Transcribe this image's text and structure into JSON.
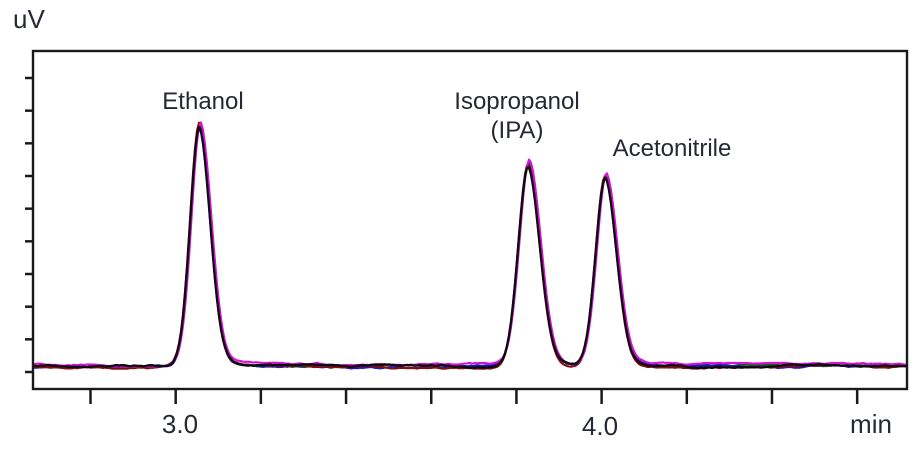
{
  "figure": {
    "kind": "overlaid-chromatograms",
    "background": "#ffffff",
    "text_color": "#262934",
    "frame_color": "#1a1a1a"
  },
  "axis_labels": {
    "y_unit": "uV",
    "x_unit": "min"
  },
  "x_tick_labels": {
    "t3": "3.0",
    "t4": "4.0"
  },
  "peak_labels": {
    "ethanol": "Ethanol",
    "ipa_line1": "Isopropanol",
    "ipa_line2": "(IPA)",
    "acetonitrile": "Acetonitrile"
  },
  "chart_data": {
    "type": "line",
    "title": "",
    "xlabel": "min",
    "ylabel": "uV",
    "x_axis": {
      "min": 2.665,
      "max": 4.717,
      "tick_step": 0.2,
      "ticks": [
        2.8,
        3.0,
        3.2,
        3.4,
        3.6,
        3.8,
        4.0,
        4.2,
        4.4,
        4.6
      ],
      "labeled_ticks": [
        3.0,
        4.0
      ]
    },
    "y_axis": {
      "unlabeled": true,
      "tick_count": 10,
      "grid": false
    },
    "legend": "none",
    "peaks": [
      {
        "name": "Ethanol",
        "retention_min": 3.057,
        "relative_height": 1.0,
        "fwhm_min": 0.056
      },
      {
        "name": "Isopropanol (IPA)",
        "retention_min": 3.829,
        "relative_height": 0.84,
        "fwhm_min": 0.06
      },
      {
        "name": "Acetonitrile",
        "retention_min": 4.01,
        "relative_height": 0.79,
        "fwhm_min": 0.058
      }
    ],
    "overlaid_runs": 5,
    "trace_colors": [
      "#156018",
      "#1818c8",
      "#801010",
      "#d512d5",
      "#0c0c10"
    ],
    "baseline": "flat-low-noise"
  }
}
